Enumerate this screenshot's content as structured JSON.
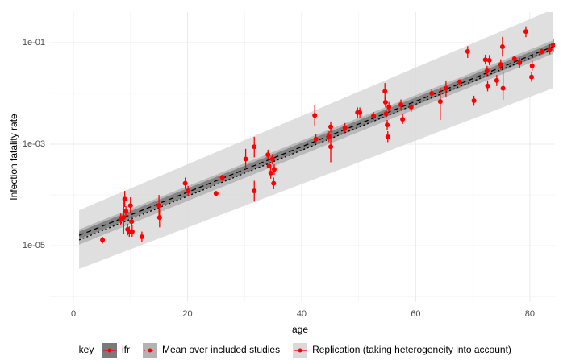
{
  "chart_data": {
    "type": "scatter",
    "x_label": "age",
    "y_label": "Infection fatality rate",
    "xlim": [
      -4.1,
      84.4
    ],
    "xticks": [
      0,
      20,
      40,
      60,
      80
    ],
    "xminor": [
      10,
      30,
      50,
      70
    ],
    "ylim": [
      7.8e-07,
      0.4
    ],
    "log_y": true,
    "yticks": [
      {
        "value": 1e-05,
        "label": "1e-05"
      },
      {
        "value": 0.001,
        "label": "1e-03"
      },
      {
        "value": 0.1,
        "label": "1e-01"
      }
    ],
    "yminor": [
      1e-06,
      0.0001,
      0.01
    ],
    "grid": true,
    "legend_position": "bottom",
    "legend_title": "key",
    "series": [
      {
        "name": "ifr",
        "kind": "line",
        "color": "#000000",
        "dash": "6,4",
        "band_color": "#7a7a7a",
        "x": [
          1,
          84
        ],
        "values": [
          1.6e-05,
          0.083
        ],
        "band": {
          "x": [
            1,
            84
          ],
          "lower": [
            1.35e-05,
            0.07
          ],
          "upper": [
            1.9e-05,
            0.098
          ]
        }
      },
      {
        "name": "Mean over included studies",
        "kind": "line",
        "color": "#000000",
        "dash": "2,3",
        "band_color": "#b3b3b3",
        "x": [
          1,
          84
        ],
        "values": [
          1.3e-05,
          0.075
        ],
        "band": {
          "x": [
            1,
            84
          ],
          "lower": [
            1.05e-05,
            0.06
          ],
          "upper": [
            2.1e-05,
            0.11
          ]
        }
      },
      {
        "name": "Replication (taking heterogeneity into account)",
        "kind": "points",
        "color": "#ff0000",
        "band_color": "#d9d9d9",
        "x": [
          5.1,
          8.3,
          8.8,
          9.0,
          9.2,
          9.5,
          9.8,
          10.0,
          10.2,
          10.3,
          12.0,
          15.0,
          15.1,
          19.6,
          20.1,
          25.0,
          26.1,
          30.2,
          31.7,
          31.7,
          34.1,
          34.3,
          34.6,
          34.9,
          35.1,
          35.2,
          42.3,
          42.5,
          44.8,
          45.1,
          45.1,
          47.6,
          49.8,
          50.2,
          52.6,
          54.6,
          54.7,
          54.8,
          55.0,
          55.1,
          55.3,
          57.4,
          57.7,
          59.2,
          62.8,
          64.3,
          65.3,
          67.7,
          69.1,
          70.2,
          72.2,
          72.5,
          72.6,
          72.9,
          74.2,
          74.9,
          75.2,
          75.3,
          77.3,
          78.2,
          79.3,
          80.3,
          80.4,
          82.1,
          83.5,
          84.1
        ],
        "values": [
          1.3e-05,
          3.3e-05,
          3.6e-05,
          8.3e-05,
          4.8e-05,
          2.1e-05,
          1.9e-05,
          6.2e-05,
          3e-05,
          1.9e-05,
          1.5e-05,
          6.2e-05,
          3.6e-05,
          0.00017,
          0.00012,
          0.000107,
          0.00022,
          0.00051,
          0.00089,
          0.00012,
          0.00062,
          0.00037,
          0.00027,
          0.00051,
          0.00017,
          0.00032,
          0.0037,
          0.00126,
          0.0014,
          0.0022,
          0.00089,
          0.0021,
          0.0042,
          0.0042,
          0.0036,
          0.011,
          0.0067,
          0.004,
          0.0024,
          0.0014,
          0.0054,
          0.006,
          0.0031,
          0.0054,
          0.01,
          0.0069,
          0.0126,
          0.017,
          0.067,
          0.0072,
          0.046,
          0.028,
          0.014,
          0.045,
          0.018,
          0.037,
          0.083,
          0.0126,
          0.048,
          0.04,
          0.166,
          0.021,
          0.035,
          0.067,
          0.074,
          0.09
        ],
        "lower": [
          1.1e-05,
          2.6e-05,
          1.7e-05,
          5.8e-05,
          3.8e-05,
          1.6e-05,
          1.5e-05,
          4.3e-05,
          2.4e-05,
          1.5e-05,
          1.2e-05,
          3.8e-05,
          2.3e-05,
          0.00013,
          9.5e-05,
          9.5e-05,
          0.00019,
          0.00032,
          0.00055,
          7.4e-05,
          0.00049,
          0.00029,
          0.00021,
          0.0004,
          0.00013,
          0.00025,
          0.0023,
          0.001,
          0.0011,
          0.0017,
          0.00044,
          0.0017,
          0.0033,
          0.0033,
          0.003,
          0.007,
          0.0053,
          0.0032,
          0.0019,
          0.0011,
          0.0043,
          0.0048,
          0.0025,
          0.0043,
          0.0085,
          0.003,
          0.0083,
          0.015,
          0.05,
          0.0057,
          0.037,
          0.022,
          0.011,
          0.036,
          0.014,
          0.029,
          0.053,
          0.0075,
          0.043,
          0.032,
          0.128,
          0.017,
          0.028,
          0.059,
          0.059,
          0.066
        ],
        "upper": [
          1.5e-05,
          4.3e-05,
          7.6e-05,
          0.00012,
          6e-05,
          2.7e-05,
          2.4e-05,
          9e-05,
          3.8e-05,
          2.5e-05,
          1.9e-05,
          0.0001,
          5.5e-05,
          0.00022,
          0.00015,
          0.00012,
          0.00025,
          0.00081,
          0.0014,
          0.00019,
          0.00078,
          0.00047,
          0.00034,
          0.00064,
          0.00022,
          0.0004,
          0.0059,
          0.0016,
          0.0018,
          0.0028,
          0.0016,
          0.0026,
          0.0053,
          0.0053,
          0.0043,
          0.016,
          0.0085,
          0.005,
          0.003,
          0.0018,
          0.0068,
          0.0076,
          0.0039,
          0.0068,
          0.012,
          0.013,
          0.018,
          0.019,
          0.085,
          0.009,
          0.058,
          0.035,
          0.018,
          0.057,
          0.023,
          0.047,
          0.13,
          0.026,
          0.054,
          0.05,
          0.21,
          0.026,
          0.044,
          0.076,
          0.093,
          0.12
        ],
        "band": {
          "x": [
            1,
            84
          ],
          "lower": [
            3.5e-06,
            0.0126
          ],
          "upper": [
            5e-05,
            0.45
          ]
        }
      }
    ]
  }
}
